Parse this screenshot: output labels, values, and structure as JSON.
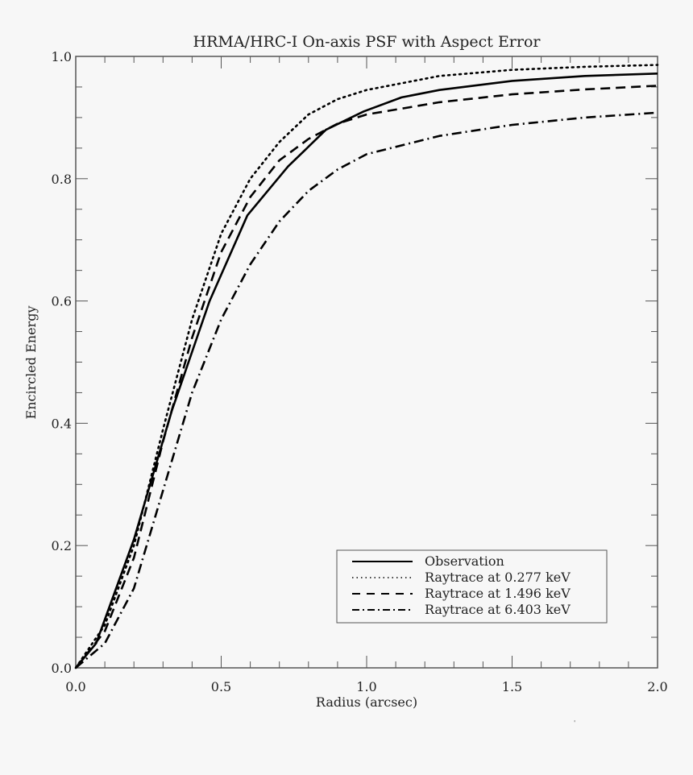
{
  "chart_data": {
    "type": "line",
    "title": "HRMA/HRC-I On-axis PSF with Aspect Error",
    "xlabel": "Radius (arcsec)",
    "ylabel": "Encircled Energy",
    "xlim": [
      0.0,
      2.0
    ],
    "ylim": [
      0.0,
      1.0
    ],
    "xticks": [
      "0.0",
      "0.5",
      "1.0",
      "1.5",
      "2.0"
    ],
    "yticks": [
      "0.0",
      "0.2",
      "0.4",
      "0.6",
      "0.8",
      "1.0"
    ],
    "grid": false,
    "legend_position": "lower right",
    "series": [
      {
        "name": "Observation",
        "style": "solid",
        "x": [
          0,
          0.07,
          0.2,
          0.33,
          0.46,
          0.59,
          0.73,
          0.86,
          0.99,
          1.12,
          1.25,
          1.5,
          1.75,
          2.0
        ],
        "y": [
          0,
          0.04,
          0.21,
          0.42,
          0.6,
          0.74,
          0.82,
          0.88,
          0.91,
          0.933,
          0.945,
          0.96,
          0.968,
          0.972
        ]
      },
      {
        "name": "Raytrace at 0.277 keV",
        "style": "dotted",
        "x": [
          0,
          0.1,
          0.2,
          0.3,
          0.4,
          0.5,
          0.6,
          0.7,
          0.8,
          0.9,
          1.0,
          1.25,
          1.5,
          1.75,
          2.0
        ],
        "y": [
          0,
          0.07,
          0.2,
          0.39,
          0.57,
          0.71,
          0.8,
          0.86,
          0.905,
          0.93,
          0.945,
          0.968,
          0.978,
          0.983,
          0.986
        ]
      },
      {
        "name": "Raytrace at 1.496 keV",
        "style": "dashed",
        "x": [
          0,
          0.1,
          0.2,
          0.3,
          0.4,
          0.5,
          0.6,
          0.7,
          0.8,
          0.9,
          1.0,
          1.25,
          1.5,
          1.75,
          2.0
        ],
        "y": [
          0,
          0.06,
          0.18,
          0.37,
          0.54,
          0.68,
          0.77,
          0.83,
          0.865,
          0.89,
          0.905,
          0.925,
          0.938,
          0.946,
          0.952
        ]
      },
      {
        "name": "Raytrace at 6.403 keV",
        "style": "dashdot",
        "x": [
          0,
          0.1,
          0.2,
          0.3,
          0.4,
          0.5,
          0.6,
          0.7,
          0.8,
          0.9,
          1.0,
          1.25,
          1.5,
          1.75,
          2.0
        ],
        "y": [
          0,
          0.04,
          0.13,
          0.29,
          0.45,
          0.57,
          0.66,
          0.73,
          0.78,
          0.815,
          0.84,
          0.87,
          0.888,
          0.9,
          0.908
        ]
      }
    ]
  }
}
